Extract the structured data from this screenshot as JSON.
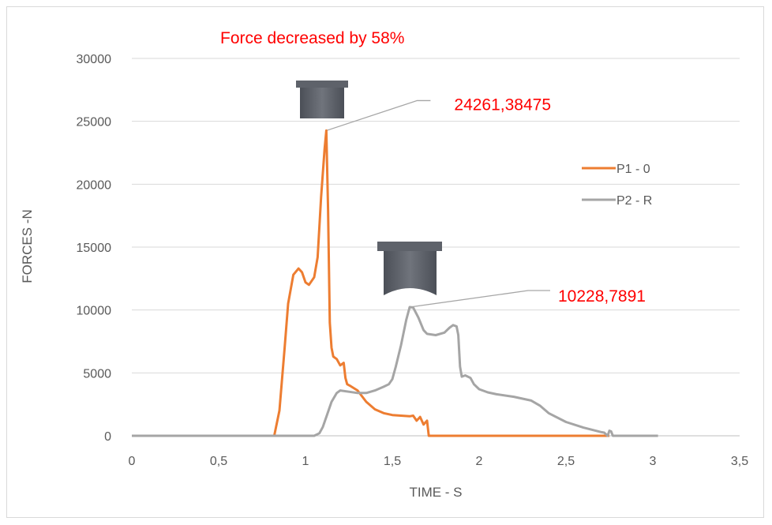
{
  "chart_data": {
    "type": "line",
    "title": "Force decreased by 58%",
    "xlabel": "TIME - S",
    "ylabel": "FORCES -N",
    "xlim": [
      0,
      3.5
    ],
    "ylim": [
      0,
      30000
    ],
    "xticks": [
      0,
      0.5,
      1,
      1.5,
      2,
      2.5,
      3,
      3.5
    ],
    "xtick_labels": [
      "0",
      "0,5",
      "1",
      "1,5",
      "2",
      "2,5",
      "3",
      "3,5"
    ],
    "yticks": [
      0,
      5000,
      10000,
      15000,
      20000,
      25000,
      30000
    ],
    "ytick_labels": [
      "0",
      "5000",
      "10000",
      "15000",
      "20000",
      "25000",
      "30000"
    ],
    "grid": "horizontal",
    "legend_position": "right",
    "series": [
      {
        "name": "P1 - 0",
        "color": "#ed7d31",
        "x": [
          0,
          0.82,
          0.85,
          0.88,
          0.9,
          0.93,
          0.96,
          0.98,
          1.0,
          1.02,
          1.05,
          1.07,
          1.09,
          1.11,
          1.12,
          1.13,
          1.14,
          1.15,
          1.16,
          1.18,
          1.2,
          1.22,
          1.23,
          1.24,
          1.26,
          1.3,
          1.35,
          1.4,
          1.45,
          1.5,
          1.55,
          1.6,
          1.62,
          1.64,
          1.66,
          1.68,
          1.7,
          1.71,
          1.8,
          2.0,
          2.5,
          2.75
        ],
        "y": [
          0,
          0,
          2000,
          7000,
          10500,
          12800,
          13300,
          13000,
          12200,
          12000,
          12600,
          14200,
          19000,
          22800,
          24261,
          18000,
          9000,
          7000,
          6300,
          6100,
          5600,
          5800,
          4600,
          4100,
          3950,
          3600,
          2700,
          2100,
          1800,
          1650,
          1600,
          1550,
          1600,
          1200,
          1500,
          900,
          1200,
          0,
          0,
          0,
          0,
          0
        ]
      },
      {
        "name": "P2 - R",
        "color": "#a5a5a5",
        "x": [
          0,
          1.05,
          1.08,
          1.1,
          1.12,
          1.15,
          1.18,
          1.2,
          1.25,
          1.3,
          1.35,
          1.4,
          1.45,
          1.48,
          1.5,
          1.52,
          1.55,
          1.58,
          1.6,
          1.62,
          1.65,
          1.68,
          1.7,
          1.75,
          1.8,
          1.83,
          1.85,
          1.87,
          1.88,
          1.89,
          1.9,
          1.92,
          1.95,
          1.97,
          2.0,
          2.05,
          2.1,
          2.2,
          2.3,
          2.35,
          2.4,
          2.5,
          2.6,
          2.7,
          2.72,
          2.74,
          2.75,
          2.76,
          2.77,
          2.8,
          3.03
        ],
        "y": [
          0,
          0,
          200,
          700,
          1500,
          2700,
          3400,
          3600,
          3500,
          3400,
          3400,
          3600,
          3900,
          4100,
          4500,
          5500,
          7200,
          9200,
          10229,
          10200,
          9400,
          8400,
          8100,
          8000,
          8200,
          8600,
          8800,
          8700,
          8000,
          5500,
          4700,
          4800,
          4600,
          4100,
          3700,
          3450,
          3300,
          3100,
          2800,
          2400,
          1800,
          1100,
          650,
          300,
          250,
          0,
          400,
          350,
          0,
          0,
          0
        ]
      }
    ],
    "annotations": [
      {
        "text": "24261,38475",
        "x": 1.12,
        "y": 24261.38475
      },
      {
        "text": "10228,7891",
        "x": 1.6,
        "y": 10228.7891
      }
    ]
  }
}
